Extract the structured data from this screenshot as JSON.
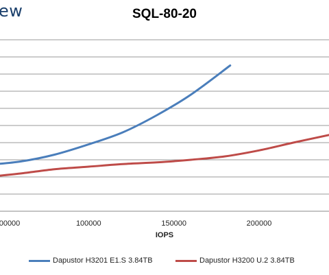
{
  "header": {
    "logo_fragment": "ew"
  },
  "chart_data": {
    "type": "line",
    "title": "SQL-80-20",
    "xlabel": "IOPS",
    "ylabel": "",
    "x_ticks": [
      "100000",
      "150000",
      "200000"
    ],
    "partial_x_tick": "00000",
    "grid": "horizontal",
    "legend_position": "bottom",
    "series": [
      {
        "name": "Dapustor H3201 E1.S 3.84TB",
        "color": "#4a7ebb",
        "points": [
          [
            40000,
            1.77
          ],
          [
            60000,
            1.79
          ],
          [
            80000,
            1.83
          ],
          [
            100000,
            1.89
          ],
          [
            120000,
            1.96
          ],
          [
            140000,
            2.06
          ],
          [
            160000,
            2.18
          ],
          [
            183000,
            2.35
          ]
        ]
      },
      {
        "name": "Dapustor H3200 U.2 3.84TB",
        "color": "#be4b48",
        "points": [
          [
            40000,
            1.7
          ],
          [
            60000,
            1.72
          ],
          [
            80000,
            1.745
          ],
          [
            100000,
            1.76
          ],
          [
            120000,
            1.775
          ],
          [
            140000,
            1.785
          ],
          [
            160000,
            1.8
          ],
          [
            180000,
            1.82
          ],
          [
            200000,
            1.855
          ],
          [
            220000,
            1.9
          ],
          [
            241000,
            1.945
          ]
        ]
      }
    ]
  }
}
